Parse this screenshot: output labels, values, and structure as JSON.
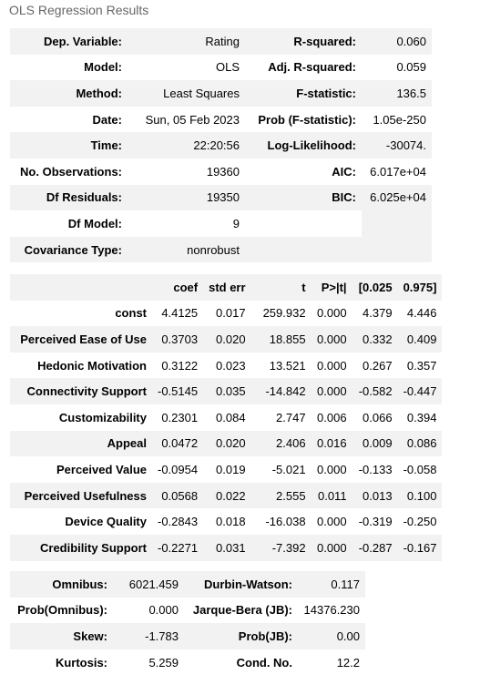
{
  "caption": "OLS Regression Results",
  "summary": [
    [
      "Dep. Variable:",
      "Rating",
      "R-squared:",
      "0.060"
    ],
    [
      "Model:",
      "OLS",
      "Adj. R-squared:",
      "0.059"
    ],
    [
      "Method:",
      "Least Squares",
      "F-statistic:",
      "136.5"
    ],
    [
      "Date:",
      "Sun, 05 Feb 2023",
      "Prob (F-statistic):",
      "1.05e-250"
    ],
    [
      "Time:",
      "22:20:56",
      "Log-Likelihood:",
      "-30074."
    ],
    [
      "No. Observations:",
      "19360",
      "AIC:",
      "6.017e+04"
    ],
    [
      "Df Residuals:",
      "19350",
      "BIC:",
      "6.025e+04"
    ],
    [
      "Df Model:",
      "9",
      "",
      ""
    ],
    [
      "Covariance Type:",
      "nonrobust",
      "",
      ""
    ]
  ],
  "coef_table": {
    "headers": [
      "",
      "coef",
      "std err",
      "t",
      "P>|t|",
      "[0.025",
      "0.975]"
    ],
    "rows": [
      [
        "const",
        "4.4125",
        "0.017",
        "259.932",
        "0.000",
        "4.379",
        "4.446"
      ],
      [
        "Perceived Ease of Use",
        "0.3703",
        "0.020",
        "18.855",
        "0.000",
        "0.332",
        "0.409"
      ],
      [
        "Hedonic Motivation",
        "0.3122",
        "0.023",
        "13.521",
        "0.000",
        "0.267",
        "0.357"
      ],
      [
        "Connectivity Support",
        "-0.5145",
        "0.035",
        "-14.842",
        "0.000",
        "-0.582",
        "-0.447"
      ],
      [
        "Customizability",
        "0.2301",
        "0.084",
        "2.747",
        "0.006",
        "0.066",
        "0.394"
      ],
      [
        "Appeal",
        "0.0472",
        "0.020",
        "2.406",
        "0.016",
        "0.009",
        "0.086"
      ],
      [
        "Perceived Value",
        "-0.0954",
        "0.019",
        "-5.021",
        "0.000",
        "-0.133",
        "-0.058"
      ],
      [
        "Perceived Usefulness",
        "0.0568",
        "0.022",
        "2.555",
        "0.011",
        "0.013",
        "0.100"
      ],
      [
        "Device Quality",
        "-0.2843",
        "0.018",
        "-16.038",
        "0.000",
        "-0.319",
        "-0.250"
      ],
      [
        "Credibility Support",
        "-0.2271",
        "0.031",
        "-7.392",
        "0.000",
        "-0.287",
        "-0.167"
      ]
    ]
  },
  "diagnostics": [
    [
      "Omnibus:",
      "6021.459",
      "Durbin-Watson:",
      "0.117"
    ],
    [
      "Prob(Omnibus):",
      "0.000",
      "Jarque-Bera (JB):",
      "14376.230"
    ],
    [
      "Skew:",
      "-1.783",
      "Prob(JB):",
      "0.00"
    ],
    [
      "Kurtosis:",
      "5.259",
      "Cond. No.",
      "12.2"
    ]
  ]
}
